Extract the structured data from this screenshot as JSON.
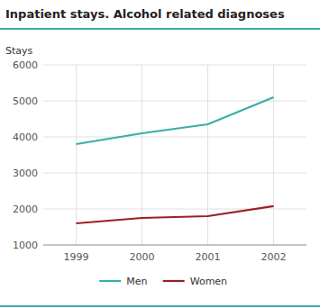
{
  "chart_data": {
    "type": "line",
    "title": "Inpatient stays. Alcohol related diagnoses",
    "ylabel": "Stays",
    "x": [
      1999,
      2000,
      2001,
      2002
    ],
    "series": [
      {
        "name": "Men",
        "color": "#3AADA8",
        "values": [
          3800,
          4100,
          4350,
          5100
        ]
      },
      {
        "name": "Women",
        "color": "#9B2020",
        "values": [
          1600,
          1750,
          1800,
          2080
        ]
      }
    ],
    "xlim": [
      1998.5,
      2002.5
    ],
    "xticks": [
      1999,
      2000,
      2001,
      2002
    ],
    "ylim": [
      1000,
      6000
    ],
    "yticks": [
      1000,
      2000,
      3000,
      4000,
      5000,
      6000
    ],
    "grid": true,
    "legend": "bottom"
  }
}
